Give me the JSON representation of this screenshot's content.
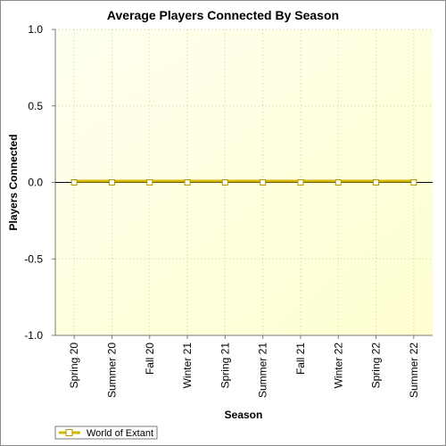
{
  "chart_data": {
    "type": "line",
    "title": "Average Players Connected By Season",
    "xlabel": "Season",
    "ylabel": "Players Connected",
    "categories": [
      "Spring 20",
      "Summer 20",
      "Fall 20",
      "Winter 21",
      "Spring 21",
      "Summer 21",
      "Fall 21",
      "Winter 22",
      "Spring 22",
      "Summer 22"
    ],
    "ylim": [
      -1.0,
      1.0
    ],
    "yticks": [
      "1.0",
      "0.5",
      "0.0",
      "-0.5",
      "-1.0"
    ],
    "yticks_values": [
      1.0,
      0.5,
      0.0,
      -0.5,
      -1.0
    ],
    "grid": true,
    "legend_position": "bottom-left",
    "series": [
      {
        "name": "World of Extant",
        "values": [
          0,
          0,
          0,
          0,
          0,
          0,
          0,
          0,
          0,
          0
        ],
        "color": "#d4b800",
        "marker_fill": "#ffffff"
      }
    ],
    "colors": {
      "plot_background_start": "#fffff0",
      "plot_background_end": "#ffffd0",
      "grid": "#c8c8a0",
      "zero_line": "#000000"
    }
  }
}
